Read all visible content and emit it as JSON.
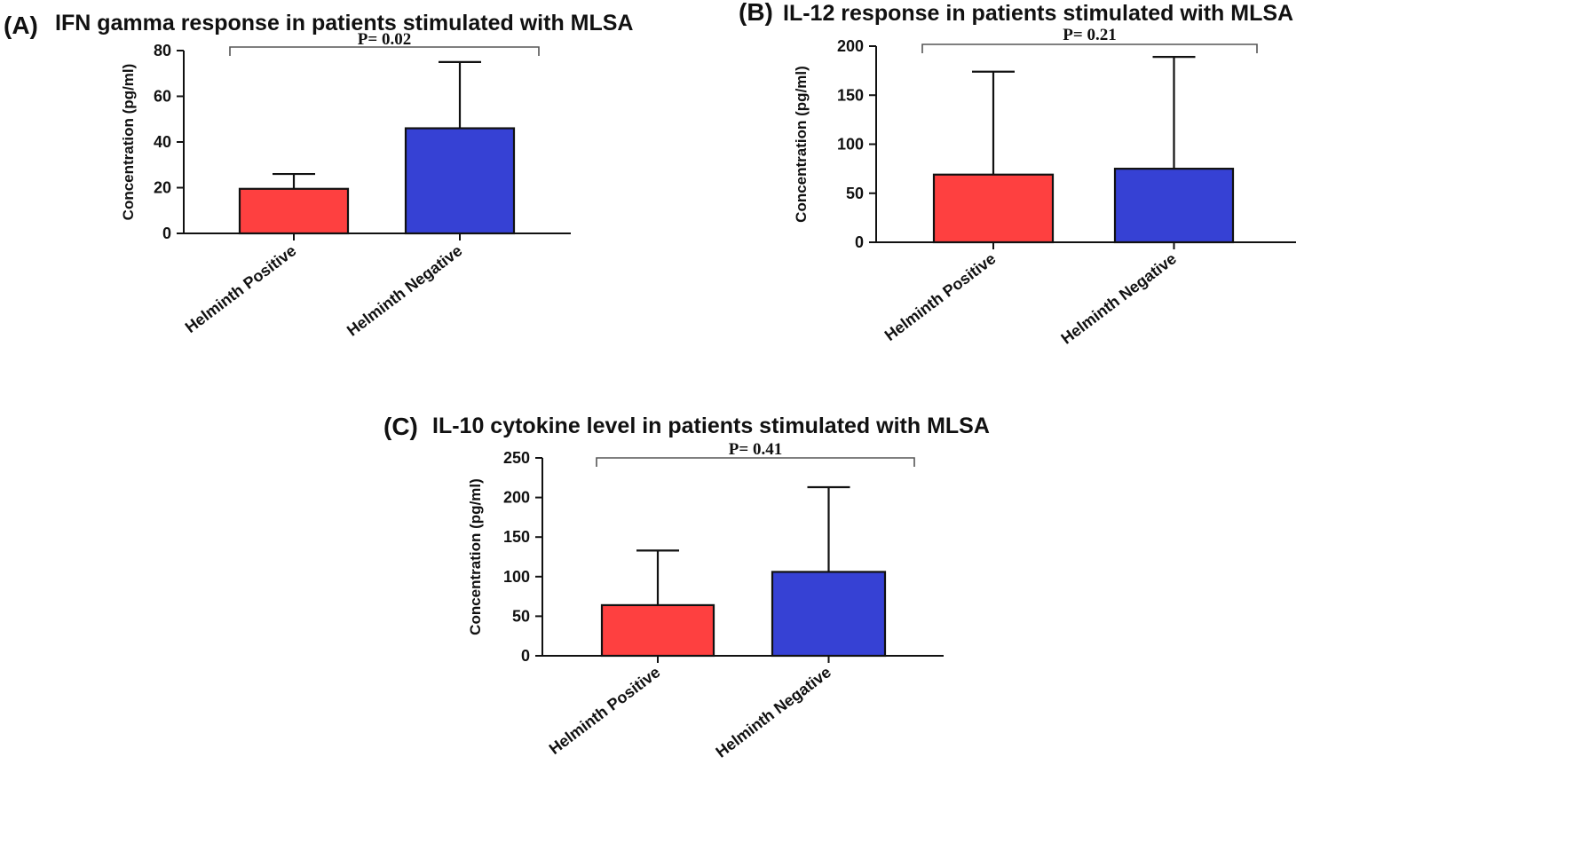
{
  "figure_name": "cytokine-response-bar-charts",
  "chart_data": [
    {
      "type": "bar",
      "panel": "(A)",
      "title": "IFN gamma response in patients stimulated with MLSA",
      "ylabel": "Concentration (pg/ml)",
      "xlabel": "",
      "categories": [
        "Helminth Positive",
        "Helminth Negative"
      ],
      "values": [
        19.5,
        46
      ],
      "errors": [
        6.5,
        29
      ],
      "colors": [
        "#fe4040",
        "#3641d4"
      ],
      "ylim": [
        0,
        80
      ],
      "yticks": [
        "0",
        "20",
        "40",
        "60",
        "80"
      ],
      "p_value": "P= 0.02",
      "grid": false
    },
    {
      "type": "bar",
      "panel": "(B)",
      "title": "IL-12 response in patients stimulated with MLSA",
      "ylabel": "Concentration (pg/ml)",
      "xlabel": "",
      "categories": [
        "Helminth Positive",
        "Helminth Negative"
      ],
      "values": [
        69,
        75
      ],
      "errors": [
        105,
        114
      ],
      "colors": [
        "#fe4040",
        "#3641d4"
      ],
      "ylim": [
        0,
        200
      ],
      "yticks": [
        "0",
        "50",
        "100",
        "150",
        "200"
      ],
      "p_value": "P= 0.21",
      "grid": false
    },
    {
      "type": "bar",
      "panel": "(C)",
      "title": "IL-10 cytokine level in patients stimulated with MLSA",
      "ylabel": "Concentration (pg/ml)",
      "xlabel": "",
      "categories": [
        "Helminth Positive",
        "Helminth Negative"
      ],
      "values": [
        64,
        106
      ],
      "errors": [
        69,
        107
      ],
      "colors": [
        "#fe4040",
        "#3641d4"
      ],
      "ylim": [
        0,
        250
      ],
      "yticks": [
        "0",
        "50",
        "100",
        "150",
        "200",
        "250"
      ],
      "p_value": "P= 0.41",
      "grid": false
    }
  ]
}
